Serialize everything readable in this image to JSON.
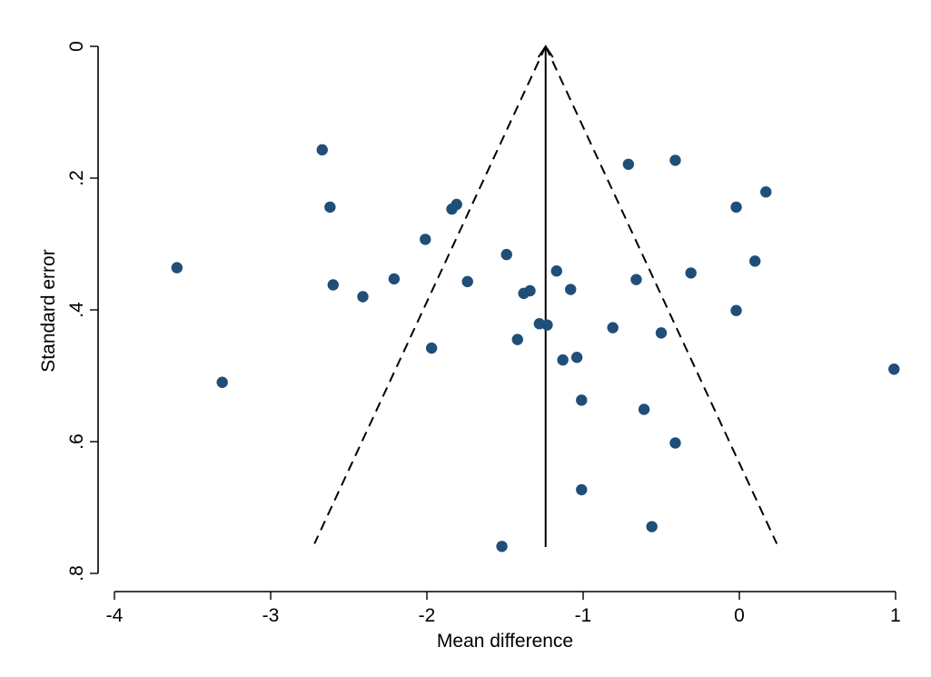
{
  "chart_data": {
    "type": "scatter",
    "title": "",
    "xlabel": "Mean difference",
    "ylabel": "Standard error",
    "xlim": [
      -4,
      1
    ],
    "ylim": [
      0,
      0.8
    ],
    "y_reversed": true,
    "grid": false,
    "x_ticks": [
      "-4",
      "-3",
      "-2",
      "-1",
      "0",
      "1"
    ],
    "y_ticks": [
      "0",
      ".2",
      ".4",
      ".6",
      ".8"
    ],
    "x_tick_values": [
      -4,
      -3,
      -2,
      -1,
      0,
      1
    ],
    "y_tick_values": [
      0,
      0.2,
      0.4,
      0.6,
      0.8
    ],
    "pooled_estimate": -1.24,
    "funnel_max_se": 0.755,
    "point_color": "#1f4e79",
    "points": [
      {
        "x": -2.67,
        "y": 0.157
      },
      {
        "x": -0.41,
        "y": 0.173
      },
      {
        "x": -0.71,
        "y": 0.179
      },
      {
        "x": 0.17,
        "y": 0.221
      },
      {
        "x": -2.62,
        "y": 0.244
      },
      {
        "x": -1.81,
        "y": 0.24
      },
      {
        "x": -1.84,
        "y": 0.247
      },
      {
        "x": -0.02,
        "y": 0.244
      },
      {
        "x": -2.01,
        "y": 0.293
      },
      {
        "x": -1.49,
        "y": 0.316
      },
      {
        "x": -3.6,
        "y": 0.336
      },
      {
        "x": 0.1,
        "y": 0.326
      },
      {
        "x": -1.17,
        "y": 0.341
      },
      {
        "x": -0.31,
        "y": 0.344
      },
      {
        "x": -0.66,
        "y": 0.354
      },
      {
        "x": -2.21,
        "y": 0.353
      },
      {
        "x": -1.74,
        "y": 0.357
      },
      {
        "x": -2.6,
        "y": 0.362
      },
      {
        "x": -1.08,
        "y": 0.369
      },
      {
        "x": -1.34,
        "y": 0.371
      },
      {
        "x": -1.38,
        "y": 0.375
      },
      {
        "x": -2.41,
        "y": 0.38
      },
      {
        "x": -0.02,
        "y": 0.401
      },
      {
        "x": -1.28,
        "y": 0.421
      },
      {
        "x": -1.23,
        "y": 0.423
      },
      {
        "x": -0.81,
        "y": 0.427
      },
      {
        "x": -0.5,
        "y": 0.435
      },
      {
        "x": -1.42,
        "y": 0.445
      },
      {
        "x": -1.97,
        "y": 0.458
      },
      {
        "x": -1.04,
        "y": 0.472
      },
      {
        "x": -1.13,
        "y": 0.476
      },
      {
        "x": 0.99,
        "y": 0.49
      },
      {
        "x": -3.31,
        "y": 0.51
      },
      {
        "x": -1.01,
        "y": 0.537
      },
      {
        "x": -0.61,
        "y": 0.551
      },
      {
        "x": -0.41,
        "y": 0.602
      },
      {
        "x": -1.01,
        "y": 0.673
      },
      {
        "x": -0.56,
        "y": 0.729
      },
      {
        "x": -1.52,
        "y": 0.759
      }
    ]
  }
}
